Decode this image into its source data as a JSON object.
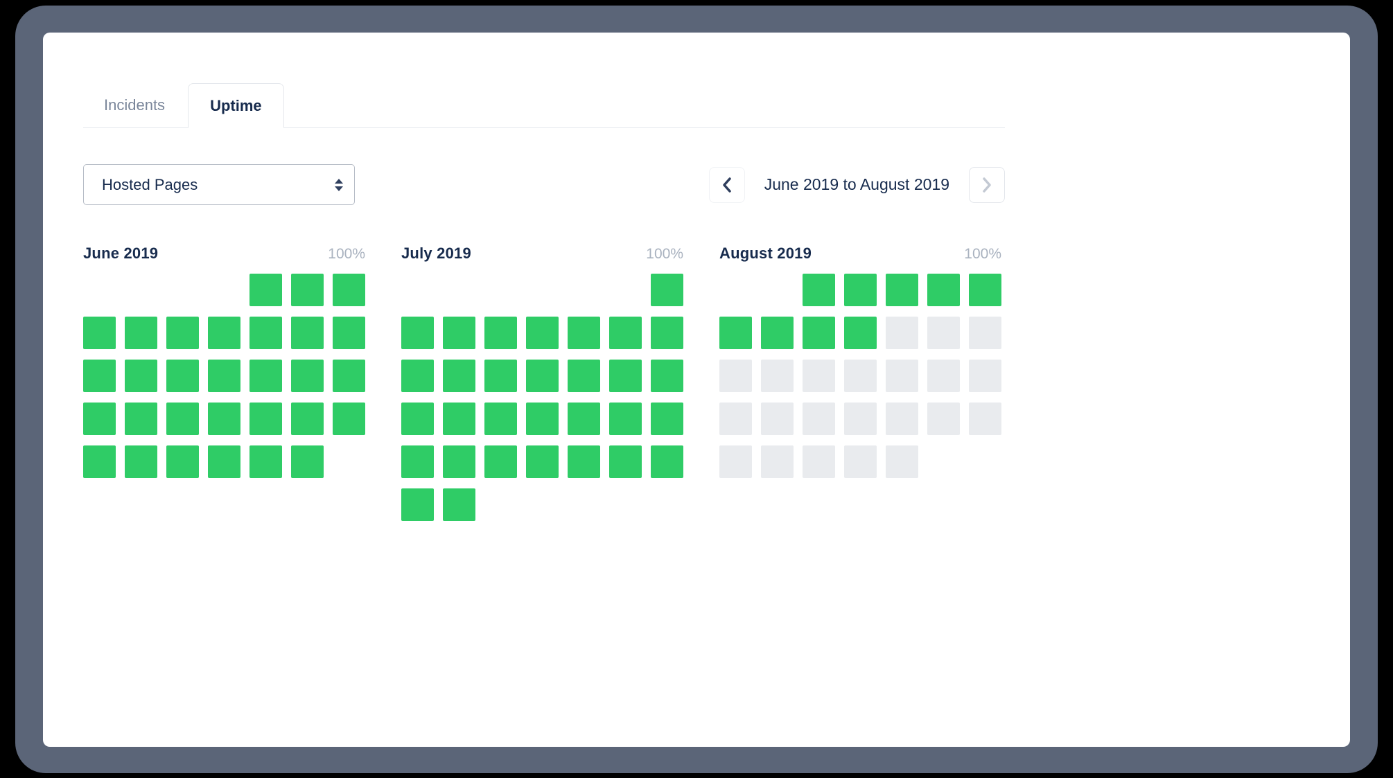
{
  "window": {
    "frame_color": "#5b6578",
    "background_color": "#000000"
  },
  "tabs": [
    {
      "label": "Incidents",
      "active": false
    },
    {
      "label": "Uptime",
      "active": true
    }
  ],
  "filter": {
    "selected_option": "Hosted Pages"
  },
  "pagination": {
    "range_label": "June 2019 to August 2019",
    "prev_enabled": true,
    "next_enabled": false
  },
  "months": [
    {
      "name": "June 2019",
      "uptime": "100%",
      "rows": [
        "....ggg",
        "ggggggg",
        "ggggggg",
        "ggggggg",
        "gggggg."
      ]
    },
    {
      "name": "July 2019",
      "uptime": "100%",
      "rows": [
        "......g",
        "ggggggg",
        "ggggggg",
        "ggggggg",
        "ggggggg",
        "gg....."
      ]
    },
    {
      "name": "August 2019",
      "uptime": "100%",
      "rows": [
        "..ggggg",
        "ggggeee",
        "eeeeeee",
        "eeeeeee",
        "eeeee.."
      ]
    }
  ],
  "legend": {
    "uptime_color": "#2fcc66",
    "future_color": "#e9ebee"
  },
  "colors": {
    "navy": "#172b4d",
    "muted": "#7a869a",
    "pct_gray": "#a9b2bf",
    "divider": "#e4e7ec"
  }
}
